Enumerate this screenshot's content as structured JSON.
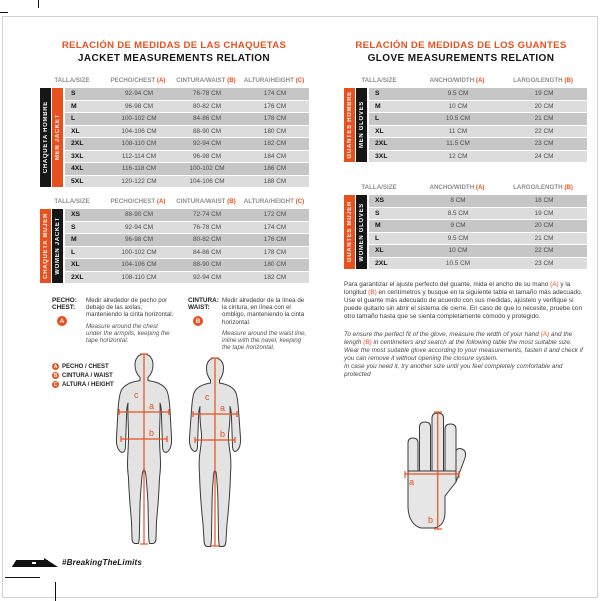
{
  "colors": {
    "accent": "#E8501E",
    "ink": "#161616",
    "row_dark": "#C6C6C6",
    "row_light": "#DCDCDC"
  },
  "jackets": {
    "title_es": "RELACIÓN DE MEDIDAS DE LAS CHAQUETAS",
    "title_en": "JACKET MEASUREMENTS RELATION",
    "headers": [
      {
        "label": "TALLA/SIZE",
        "marker": ""
      },
      {
        "label": "PECHO/CHEST ",
        "marker": "(A)"
      },
      {
        "label": "CINTURA/WAIST ",
        "marker": "(B)"
      },
      {
        "label": "ALTURA/HEIGHT ",
        "marker": "(C)"
      }
    ],
    "men": {
      "side_outer": "CHAQUETA HOMBRE",
      "side_inner": "MEN JACKET",
      "rows": [
        [
          "S",
          "92-94 CM",
          "76-78 CM",
          "174 CM"
        ],
        [
          "M",
          "96-98 CM",
          "80-82 CM",
          "176 CM"
        ],
        [
          "L",
          "100-102 CM",
          "84-86 CM",
          "178 CM"
        ],
        [
          "XL",
          "104-106 CM",
          "88-90 CM",
          "180 CM"
        ],
        [
          "2XL",
          "108-110 CM",
          "92-94 CM",
          "182 CM"
        ],
        [
          "3XL",
          "112-114 CM",
          "96-98 CM",
          "184 CM"
        ],
        [
          "4XL",
          "116-118 CM",
          "100-102 CM",
          "186 CM"
        ],
        [
          "5XL",
          "120-122 CM",
          "104-106 CM",
          "188 CM"
        ]
      ]
    },
    "women": {
      "side_outer": "CHAQUETA MUJER",
      "side_inner": "WOMEN JACKET",
      "rows": [
        [
          "XS",
          "88-90 CM",
          "72-74 CM",
          "172 CM"
        ],
        [
          "S",
          "92-94 CM",
          "76-78 CM",
          "174 CM"
        ],
        [
          "M",
          "96-98 CM",
          "80-82 CM",
          "176 CM"
        ],
        [
          "L",
          "100-102 CM",
          "84-86 CM",
          "178 CM"
        ],
        [
          "XL",
          "104-106 CM",
          "88-90 CM",
          "180 CM"
        ],
        [
          "2XL",
          "108-110 CM",
          "92-94 CM",
          "182 CM"
        ]
      ]
    }
  },
  "gloves": {
    "title_es": "RELACIÓN DE MEDIDAS DE LOS GUANTES",
    "title_en": "GLOVE MEASUREMENTS RELATION",
    "headers": [
      {
        "label": "TALLA/SIZE",
        "marker": ""
      },
      {
        "label": "ANCHO/WIDTH ",
        "marker": "(A)"
      },
      {
        "label": "LARGO/LENGTH ",
        "marker": "(B)"
      }
    ],
    "men": {
      "side_outer": "GUANTES HOMBRE",
      "side_inner": "MEN GLOVES",
      "rows": [
        [
          "S",
          "9.5 CM",
          "19 CM"
        ],
        [
          "M",
          "10 CM",
          "20 CM"
        ],
        [
          "L",
          "10.5 CM",
          "21 CM"
        ],
        [
          "XL",
          "11 CM",
          "22 CM"
        ],
        [
          "2XL",
          "11.5 CM",
          "23 CM"
        ],
        [
          "3XL",
          "12 CM",
          "24 CM"
        ]
      ]
    },
    "women": {
      "side_outer": "GUANTES MUJER",
      "side_inner": "WOMEN GLOVES",
      "rows": [
        [
          "XS",
          "8 CM",
          "18 CM"
        ],
        [
          "S",
          "8.5 CM",
          "19 CM"
        ],
        [
          "M",
          "9 CM",
          "20 CM"
        ],
        [
          "L",
          "9.5 CM",
          "21 CM"
        ],
        [
          "XL",
          "10 CM",
          "22 CM"
        ],
        [
          "2XL",
          "10.5 CM",
          "23 CM"
        ]
      ]
    }
  },
  "instructions": {
    "chest": {
      "term_es": "PECHO:",
      "term_en": "CHEST:",
      "badge": "A",
      "text_es": "Medir alrededor de pecho por debajo de las axilas, manteniendo la cinta horizontal.",
      "text_en": "Measure around the chest under the armpits, keeping the tape horizontal."
    },
    "waist": {
      "term_es": "CINTURA:",
      "term_en": "WAIST:",
      "badge": "B",
      "text_es": "Medir alrededor de la línea de la cintura, en línea con el ombligo, manteniendo la cinta horizontal.",
      "text_en": "Measure around the waist line, inline with the navel, keeping the tape horizontal."
    }
  },
  "legend": [
    {
      "badge": "A",
      "label": "PECHO / CHEST"
    },
    {
      "badge": "B",
      "label": "CINTURA / WAIST"
    },
    {
      "badge": "C",
      "label": "ALTURA / HEIGHT"
    }
  ],
  "glove_text": {
    "es1": [
      {
        "t": "Para garantizar el ajuste perfecto del guante, mida el ancho de su mano "
      },
      {
        "t": "(A)",
        "a": true
      },
      {
        "t": " y la longitud "
      },
      {
        "t": "(B)",
        "a": true
      },
      {
        "t": " en centímetros y busque en la siguiente tabla el tamaño más adecuado."
      }
    ],
    "es2": [
      {
        "t": "Use el guante más adecuado de acuerdo con sus medidas, ajústelo y verifique si puede quitarlo sin abrir el sistema de cierre. En caso de que lo necesite, pruebe con otro tamaño hasta que se sienta completamente cómodo y protegido."
      }
    ],
    "en1": [
      {
        "t": "To ensure the perfect fit of the glove, measure the width of your hand "
      },
      {
        "t": "(A)",
        "a": true
      },
      {
        "t": " and the length "
      },
      {
        "t": "(B)",
        "a": true
      },
      {
        "t": " in centimeters and search at the following table the most suitable size.  Wear the most suitable glove according to your measurements, fasten it and check if you can remove it without opening the closure system."
      }
    ],
    "en2": [
      {
        "t": "In case you need it, try another size until you feel completely comfortable and protected"
      }
    ]
  },
  "diagram_labels": {
    "a": "a",
    "b": "b",
    "c": "c"
  },
  "footer": {
    "hashtag": "#BreakingTheLimits"
  }
}
